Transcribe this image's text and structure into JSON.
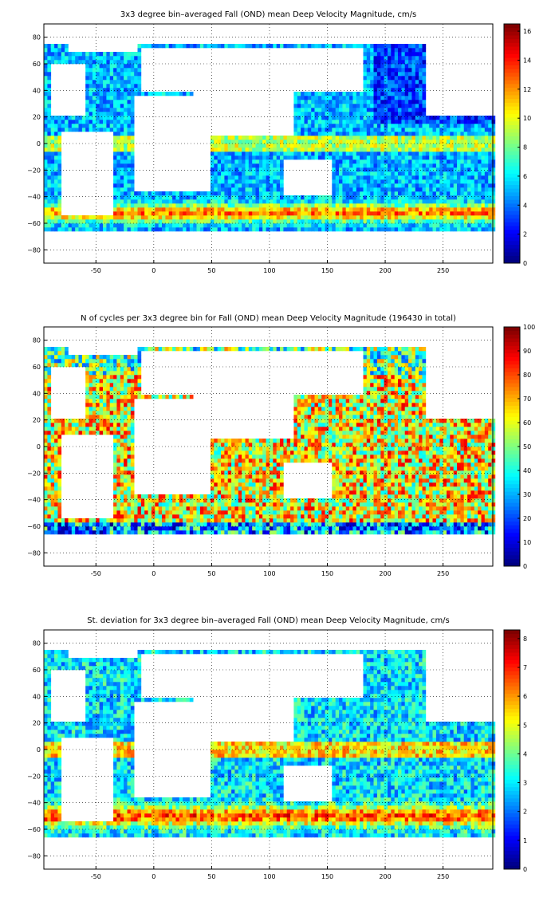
{
  "chart_data": [
    {
      "type": "heatmap",
      "title": "3x3 degree bin–averaged Fall (OND) mean Deep Velocity Magnitude, cm/s",
      "x_ticks": [
        "-50",
        "0",
        "50",
        "100",
        "150",
        "200",
        "250"
      ],
      "y_ticks": [
        "80",
        "60",
        "40",
        "20",
        "0",
        "−20",
        "−40",
        "−60",
        "−80"
      ],
      "xlim": [
        -95,
        293
      ],
      "ylim": [
        -90,
        90
      ],
      "colorbar_ticks": [
        "0",
        "2",
        "4",
        "6",
        "8",
        "10",
        "12",
        "14",
        "16"
      ],
      "colorbar_range": [
        0,
        16.5
      ],
      "grid": true,
      "colormap": "jet"
    },
    {
      "type": "heatmap",
      "title": "N of cycles per 3x3 degree bin for Fall (OND) mean Deep Velocity Magnitude (196430 in total)",
      "x_ticks": [
        "-50",
        "0",
        "50",
        "100",
        "150",
        "200",
        "250"
      ],
      "y_ticks": [
        "80",
        "60",
        "40",
        "20",
        "0",
        "−20",
        "−40",
        "−60",
        "−80"
      ],
      "xlim": [
        -95,
        293
      ],
      "ylim": [
        -90,
        90
      ],
      "colorbar_ticks": [
        "0",
        "10",
        "20",
        "30",
        "40",
        "50",
        "60",
        "70",
        "80",
        "90",
        "100"
      ],
      "colorbar_range": [
        0,
        100
      ],
      "grid": true,
      "colormap": "jet"
    },
    {
      "type": "heatmap",
      "title": "St. deviation for 3x3 degree bin–averaged Fall (OND) mean Deep Velocity Magnitude, cm/s",
      "x_ticks": [
        "-50",
        "0",
        "50",
        "100",
        "150",
        "200",
        "250"
      ],
      "y_ticks": [
        "80",
        "60",
        "40",
        "20",
        "0",
        "−20",
        "−40",
        "−60",
        "−80"
      ],
      "xlim": [
        -95,
        293
      ],
      "ylim": [
        -90,
        90
      ],
      "colorbar_ticks": [
        "0",
        "1",
        "2",
        "3",
        "4",
        "5",
        "6",
        "7",
        "8"
      ],
      "colorbar_range": [
        0,
        8.3
      ],
      "grid": true,
      "colormap": "jet"
    }
  ]
}
